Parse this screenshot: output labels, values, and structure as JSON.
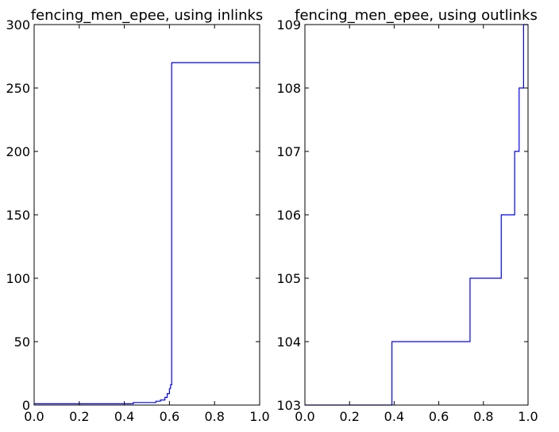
{
  "chart_data": [
    {
      "type": "line",
      "title": "fencing_men_epee, using inlinks",
      "xlabel": "",
      "ylabel": "",
      "xlim": [
        0.0,
        1.0
      ],
      "ylim": [
        0,
        300
      ],
      "xticks": [
        0.0,
        0.2,
        0.4,
        0.6,
        0.8,
        1.0
      ],
      "xtick_labels": [
        "0.0",
        "0.2",
        "0.4",
        "0.6",
        "0.8",
        "1.0"
      ],
      "yticks": [
        0,
        50,
        100,
        150,
        200,
        250,
        300
      ],
      "ytick_labels": [
        "0",
        "50",
        "100",
        "150",
        "200",
        "250",
        "300"
      ],
      "grid": false,
      "step": true,
      "series": [
        {
          "color": "#0000ff",
          "x": [
            0.0,
            0.44,
            0.44,
            0.54,
            0.54,
            0.56,
            0.56,
            0.58,
            0.58,
            0.59,
            0.59,
            0.6,
            0.6,
            0.605,
            0.605,
            0.61,
            0.61,
            1.0
          ],
          "y": [
            1,
            1,
            2,
            2,
            3,
            3,
            4,
            4,
            6,
            6,
            9,
            9,
            13,
            13,
            16,
            16,
            270,
            270
          ]
        }
      ]
    },
    {
      "type": "line",
      "title": "fencing_men_epee, using outlinks",
      "xlabel": "",
      "ylabel": "",
      "xlim": [
        0.0,
        1.0
      ],
      "ylim": [
        103,
        109
      ],
      "xticks": [
        0.0,
        0.2,
        0.4,
        0.6,
        0.8,
        1.0
      ],
      "xtick_labels": [
        "0.0",
        "0.2",
        "0.4",
        "0.6",
        "0.8",
        "1.0"
      ],
      "yticks": [
        103,
        104,
        105,
        106,
        107,
        108,
        109
      ],
      "ytick_labels": [
        "103",
        "104",
        "105",
        "106",
        "107",
        "108",
        "109"
      ],
      "grid": false,
      "step": true,
      "series": [
        {
          "color": "#0000ff",
          "x": [
            0.0,
            0.39,
            0.39,
            0.74,
            0.74,
            0.88,
            0.88,
            0.94,
            0.94,
            0.96,
            0.96,
            0.98,
            0.98,
            1.0
          ],
          "y": [
            103,
            103,
            104,
            104,
            105,
            105,
            106,
            106,
            107,
            107,
            108,
            108,
            109,
            109
          ]
        }
      ]
    }
  ]
}
